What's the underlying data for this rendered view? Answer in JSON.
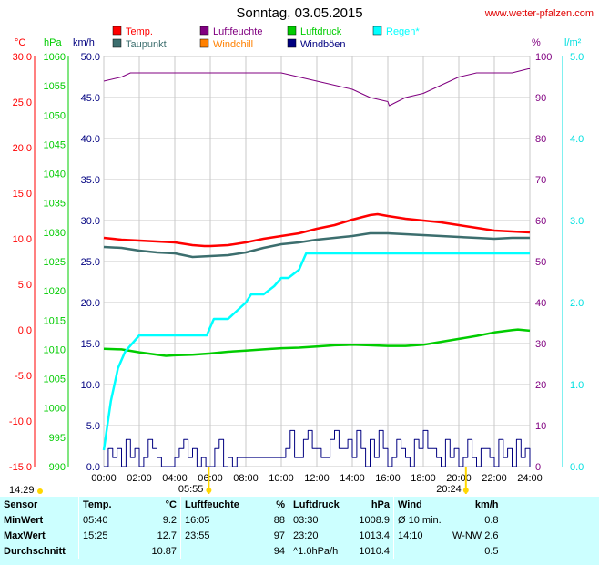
{
  "header": {
    "title": "Sonntag, 03.05.2015",
    "site": "www.wetter-pfalzen.com"
  },
  "colors": {
    "temp": "#ff0000",
    "taupunkt": "#3c6e6e",
    "luftfeuchte": "#800080",
    "windchill": "#ff8000",
    "luftdruck": "#00cc00",
    "windboeen": "#000080",
    "regen": "#00ffff",
    "axis_temp": "#ff0000",
    "axis_hpa": "#00cc00",
    "axis_regen": "#00e0e0",
    "table_bg": "#ccffff"
  },
  "chart_data": {
    "type": "line",
    "units": {
      "temp": "°C",
      "pressure": "hPa",
      "wind": "km/h",
      "humidity": "%",
      "rain": "l/m²"
    },
    "axes": {
      "temp": {
        "ticks": [
          "30.0",
          "25.0",
          "20.0",
          "15.0",
          "10.0",
          "5.0",
          "0.0",
          "-5.0",
          "-10.0",
          "-15.0"
        ],
        "range": [
          -15,
          30
        ]
      },
      "pressure": {
        "ticks": [
          "1060",
          "1055",
          "1050",
          "1045",
          "1040",
          "1035",
          "1030",
          "1025",
          "1020",
          "1015",
          "1010",
          "1005",
          "1000",
          "995",
          "990"
        ],
        "range": [
          990,
          1060
        ]
      },
      "wind": {
        "ticks": [
          "50.0",
          "45.0",
          "40.0",
          "35.0",
          "30.0",
          "25.0",
          "20.0",
          "15.0",
          "10.0",
          "5.0",
          "0.0"
        ],
        "range": [
          0,
          50
        ]
      },
      "humidity": {
        "ticks": [
          "100",
          "90",
          "80",
          "70",
          "60",
          "50",
          "40",
          "30",
          "20",
          "10",
          "0"
        ],
        "range": [
          0,
          100
        ]
      },
      "rain": {
        "ticks": [
          "5.0",
          "4.0",
          "3.0",
          "2.0",
          "1.0",
          "0.0"
        ],
        "range": [
          0,
          5
        ]
      },
      "x": {
        "ticks": [
          "00:00",
          "02:00",
          "04:00",
          "06:00",
          "08:00",
          "10:00",
          "12:00",
          "14:00",
          "16:00",
          "18:00",
          "20:00",
          "22:00",
          "24:00"
        ],
        "range": [
          0,
          24
        ]
      }
    },
    "legend": [
      {
        "name": "Temp.",
        "key": "temp"
      },
      {
        "name": "Luftfeuchte",
        "key": "luftfeuchte"
      },
      {
        "name": "Luftdruck",
        "key": "luftdruck"
      },
      {
        "name": "Regen*",
        "key": "regen"
      },
      {
        "name": "Taupunkt",
        "key": "taupunkt"
      },
      {
        "name": "Windchill",
        "key": "windchill"
      },
      {
        "name": "Windböen",
        "key": "windboeen"
      }
    ],
    "sun": {
      "sunrise": "05:55",
      "sunset": "20:24",
      "daylight": "14:29"
    },
    "series": [
      {
        "name": "Temp.",
        "key": "temp",
        "axis": "temp",
        "x": [
          0,
          1,
          2,
          3,
          4,
          5,
          5.67,
          6,
          7,
          8,
          9,
          10,
          11,
          12,
          13,
          14,
          15,
          15.42,
          16,
          17,
          18,
          19,
          20,
          21,
          22,
          23,
          24
        ],
        "y": [
          10.1,
          9.9,
          9.8,
          9.7,
          9.6,
          9.3,
          9.2,
          9.2,
          9.3,
          9.6,
          10.0,
          10.3,
          10.6,
          11.1,
          11.5,
          12.1,
          12.6,
          12.7,
          12.5,
          12.2,
          12.0,
          11.8,
          11.5,
          11.2,
          10.9,
          10.8,
          10.7
        ]
      },
      {
        "name": "Taupunkt",
        "key": "taupunkt",
        "axis": "temp",
        "x": [
          0,
          1,
          2,
          3,
          4,
          5,
          6,
          7,
          8,
          9,
          10,
          11,
          12,
          13,
          14,
          15,
          16,
          17,
          18,
          19,
          20,
          21,
          22,
          23,
          24
        ],
        "y": [
          9.1,
          9.0,
          8.7,
          8.5,
          8.4,
          8.0,
          8.1,
          8.2,
          8.5,
          9.0,
          9.4,
          9.6,
          9.9,
          10.1,
          10.3,
          10.6,
          10.6,
          10.5,
          10.4,
          10.3,
          10.2,
          10.1,
          10.0,
          10.1,
          10.1
        ]
      },
      {
        "name": "Luftfeuchte",
        "key": "luftfeuchte",
        "axis": "humidity",
        "x": [
          0,
          1,
          1.5,
          3,
          4,
          5,
          6,
          7,
          8,
          9,
          10,
          11,
          12,
          13,
          14,
          15,
          16,
          16.08,
          17,
          18,
          19,
          20,
          21,
          22,
          23,
          23.92,
          24
        ],
        "y": [
          94,
          95,
          96,
          96,
          96,
          96,
          96,
          96,
          96,
          96,
          96,
          95,
          94,
          93,
          92,
          90,
          89,
          88,
          90,
          91,
          93,
          95,
          96,
          96,
          96,
          97,
          97
        ]
      },
      {
        "name": "Luftdruck",
        "key": "luftdruck",
        "axis": "pressure",
        "x": [
          0,
          1,
          2,
          3,
          3.5,
          4,
          5,
          6,
          7,
          8,
          9,
          10,
          11,
          12,
          13,
          14,
          15,
          16,
          17,
          18,
          19,
          20,
          21,
          22,
          23,
          23.33,
          24
        ],
        "y": [
          1010.1,
          1010.0,
          1009.5,
          1009.1,
          1008.9,
          1009.0,
          1009.1,
          1009.3,
          1009.6,
          1009.8,
          1010.0,
          1010.2,
          1010.3,
          1010.5,
          1010.7,
          1010.8,
          1010.7,
          1010.6,
          1010.6,
          1010.8,
          1011.3,
          1011.8,
          1012.3,
          1012.9,
          1013.3,
          1013.4,
          1013.2
        ]
      },
      {
        "name": "Regen*",
        "key": "regen",
        "axis": "rain",
        "x": [
          0,
          0.4,
          0.8,
          1.2,
          1.6,
          2,
          5.8,
          6,
          6.2,
          7,
          7.5,
          8,
          8.3,
          9,
          9.6,
          10,
          10.4,
          11,
          11.4,
          12,
          13,
          24
        ],
        "y": [
          0.2,
          0.8,
          1.2,
          1.4,
          1.5,
          1.6,
          1.6,
          1.7,
          1.8,
          1.8,
          1.9,
          2.0,
          2.1,
          2.1,
          2.2,
          2.3,
          2.3,
          2.4,
          2.6,
          2.6,
          2.6,
          2.6
        ]
      },
      {
        "name": "Windböen",
        "key": "windboeen",
        "axis": "wind",
        "x": [
          0,
          0.25,
          0.5,
          0.75,
          1,
          1.25,
          1.5,
          1.75,
          2,
          2.25,
          2.5,
          2.75,
          3,
          3.25,
          3.5,
          3.75,
          4,
          4.25,
          4.5,
          4.75,
          5,
          5.25,
          5.5,
          5.75,
          6,
          6.25,
          6.5,
          6.75,
          7,
          7.25,
          7.5,
          7.75,
          8,
          8.25,
          8.5,
          8.75,
          9,
          9.25,
          9.5,
          9.75,
          10,
          10.25,
          10.5,
          10.75,
          11,
          11.25,
          11.5,
          11.75,
          12,
          12.25,
          12.5,
          12.75,
          13,
          13.25,
          13.5,
          13.75,
          14,
          14.25,
          14.5,
          14.75,
          15,
          15.25,
          15.5,
          15.75,
          16,
          16.25,
          16.5,
          16.75,
          17,
          17.25,
          17.5,
          17.75,
          18,
          18.25,
          18.5,
          18.75,
          19,
          19.25,
          19.5,
          19.75,
          20,
          20.25,
          20.5,
          20.75,
          21,
          21.25,
          21.5,
          21.75,
          22,
          22.25,
          22.5,
          22.75,
          23,
          23.25,
          23.5,
          23.75,
          24
        ],
        "y": [
          0,
          2.2,
          1.1,
          2.2,
          0,
          3.3,
          1.1,
          2.2,
          0,
          1.1,
          3.3,
          2.2,
          1.1,
          0,
          0,
          0,
          1.1,
          2.2,
          3.3,
          1.1,
          2.2,
          0,
          1.1,
          0,
          0,
          2.2,
          3.3,
          0,
          1.1,
          0,
          1.1,
          1.1,
          1.1,
          1.1,
          1.1,
          1.1,
          1.1,
          1.1,
          1.1,
          1.1,
          1.1,
          2.2,
          4.4,
          1.1,
          1.1,
          3.3,
          4.4,
          2.2,
          2.2,
          1.1,
          1.1,
          3.3,
          4.4,
          2.2,
          2.2,
          3.3,
          1.1,
          4.4,
          2.2,
          0,
          3.3,
          1.1,
          4.4,
          2.2,
          0,
          1.1,
          3.3,
          2.2,
          1.1,
          0,
          3.3,
          2.2,
          4.4,
          2.2,
          2.2,
          1.1,
          0,
          3.3,
          1.1,
          2.2,
          0,
          1.1,
          3.3,
          1.1,
          0,
          2.2,
          2.2,
          1.1,
          0,
          3.3,
          1.1,
          2.2,
          0,
          3.3,
          1.1,
          2.2,
          0
        ]
      }
    ]
  },
  "table": {
    "headers": [
      "Sensor",
      "Temp.",
      "°C",
      "Luftfeuchte",
      "%",
      "Luftdruck",
      "hPa",
      "Wind",
      "km/h"
    ],
    "rows": [
      {
        "label": "MinWert",
        "t_time": "05:40",
        "t_val": "9.2",
        "h_time": "16:05",
        "h_val": "88",
        "p_time": "03:30",
        "p_val": "1008.9",
        "w_label": "Ø 10 min.",
        "w_val": "0.8"
      },
      {
        "label": "MaxWert",
        "t_time": "15:25",
        "t_val": "12.7",
        "h_time": "23:55",
        "h_val": "97",
        "p_time": "23:20",
        "p_val": "1013.4",
        "w_label": "14:10",
        "w_val": "W-NW 2.6"
      },
      {
        "label": "Durchschnitt",
        "t_time": "",
        "t_val": "10.87",
        "h_time": "",
        "h_val": "94",
        "p_time": "^1.0hPa/h",
        "p_val": "1010.4",
        "w_label": "",
        "w_val": "0.5"
      }
    ]
  }
}
